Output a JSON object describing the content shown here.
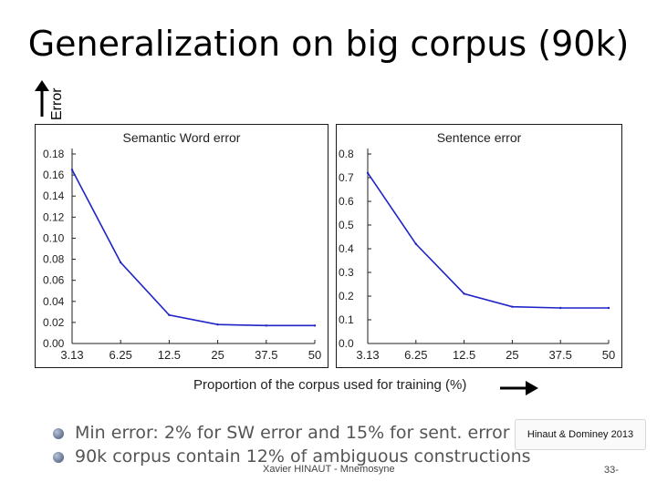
{
  "slide": {
    "title": "Generalization on big corpus (90k)",
    "y_axis_label": "Error",
    "x_axis_label": "Proportion of the corpus used for training (%)",
    "bullets": [
      "Min error:  2% for SW error and 15% for sent. error",
      "90k corpus contain 12% of ambiguous constructions"
    ],
    "reference": "Hinaut & Dominey 2013",
    "footer": "Xavier HINAUT - Mnemosyne",
    "page_number": "33-"
  },
  "colors": {
    "line": "#1f24c7",
    "panel_border": "#1a1a1a",
    "bullet": "#3d4f6e"
  },
  "chart_data": [
    {
      "type": "line",
      "title": "Semantic Word error",
      "categories": [
        "3.13",
        "6.25",
        "12.5",
        "25",
        "37.5",
        "50"
      ],
      "series": [
        {
          "values": [
            0.165,
            0.077,
            0.027,
            0.018,
            0.017,
            0.017
          ]
        }
      ],
      "ylim": [
        0,
        0.18
      ],
      "yticks": [
        "0.00",
        "0.02",
        "0.04",
        "0.06",
        "0.08",
        "0.10",
        "0.12",
        "0.14",
        "0.16",
        "0.18"
      ],
      "grid": false
    },
    {
      "type": "line",
      "title": "Sentence error",
      "categories": [
        "3.13",
        "6.25",
        "12.5",
        "25",
        "37.5",
        "50"
      ],
      "series": [
        {
          "values": [
            0.72,
            0.42,
            0.21,
            0.155,
            0.15,
            0.15
          ]
        }
      ],
      "ylim": [
        0,
        0.8
      ],
      "yticks": [
        "0.0",
        "0.1",
        "0.2",
        "0.3",
        "0.4",
        "0.5",
        "0.6",
        "0.7",
        "0.8"
      ],
      "grid": false
    }
  ]
}
